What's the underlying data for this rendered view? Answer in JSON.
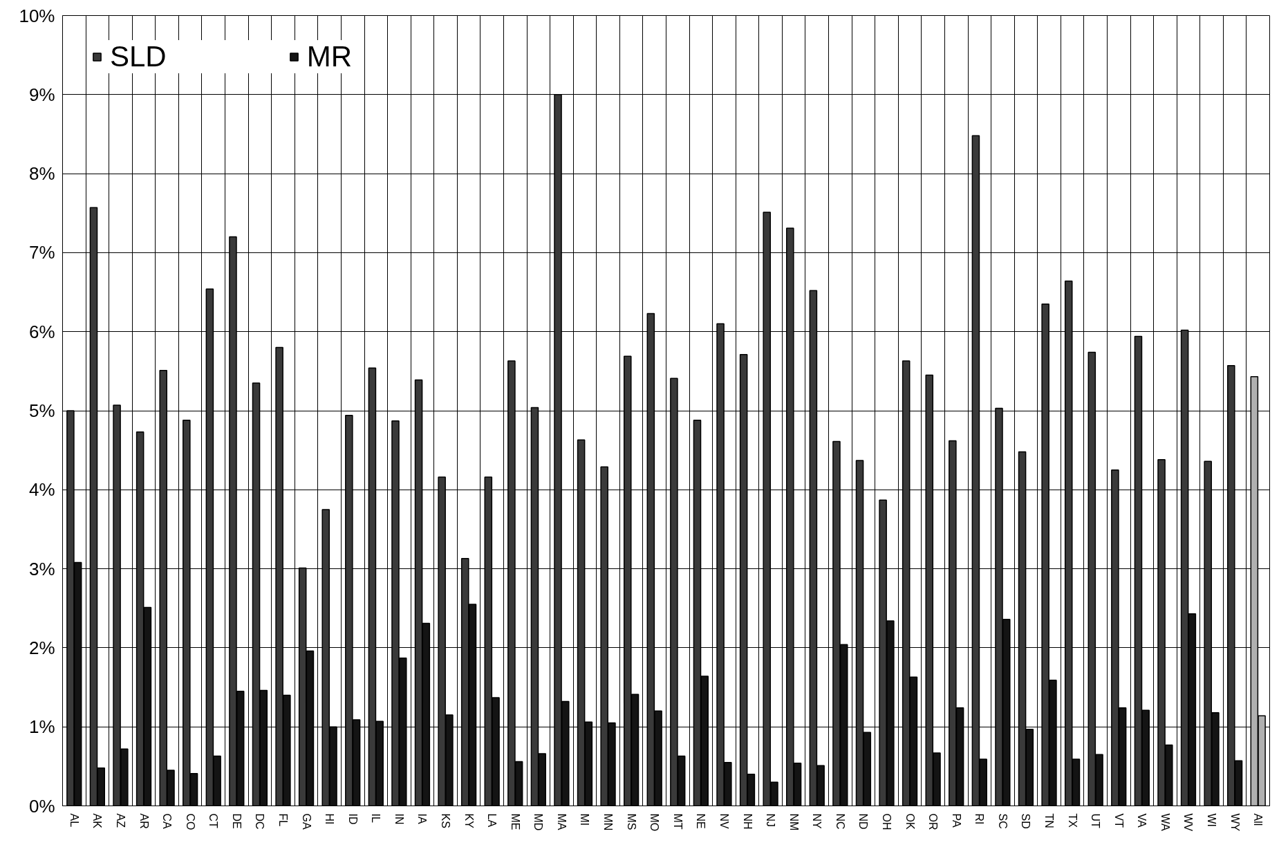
{
  "chart_data": {
    "type": "bar",
    "categories": [
      "AL",
      "AK",
      "AZ",
      "AR",
      "CA",
      "CO",
      "CT",
      "DE",
      "DC",
      "FL",
      "GA",
      "HI",
      "ID",
      "IL",
      "IN",
      "IA",
      "KS",
      "KY",
      "LA",
      "ME",
      "MD",
      "MA",
      "MI",
      "MN",
      "MS",
      "MO",
      "MT",
      "NE",
      "NV",
      "NH",
      "NJ",
      "NM",
      "NY",
      "NC",
      "ND",
      "OH",
      "OK",
      "OR",
      "PA",
      "RI",
      "SC",
      "SD",
      "TN",
      "TX",
      "UT",
      "VT",
      "VA",
      "WA",
      "WV",
      "WI",
      "WY",
      "All"
    ],
    "series": [
      {
        "name": "SLD",
        "color": "#3a3a3a",
        "colors": [
          "#3a3a3a",
          "#3a3a3a",
          "#3a3a3a",
          "#3a3a3a",
          "#3a3a3a",
          "#3a3a3a",
          "#3a3a3a",
          "#3a3a3a",
          "#3a3a3a",
          "#3a3a3a",
          "#3a3a3a",
          "#3a3a3a",
          "#3a3a3a",
          "#3a3a3a",
          "#3a3a3a",
          "#3a3a3a",
          "#3a3a3a",
          "#3a3a3a",
          "#3a3a3a",
          "#3a3a3a",
          "#3a3a3a",
          "#3a3a3a",
          "#3a3a3a",
          "#3a3a3a",
          "#3a3a3a",
          "#3a3a3a",
          "#3a3a3a",
          "#3a3a3a",
          "#3a3a3a",
          "#3a3a3a",
          "#3a3a3a",
          "#3a3a3a",
          "#3a3a3a",
          "#3a3a3a",
          "#3a3a3a",
          "#3a3a3a",
          "#3a3a3a",
          "#3a3a3a",
          "#3a3a3a",
          "#3a3a3a",
          "#3a3a3a",
          "#3a3a3a",
          "#3a3a3a",
          "#3a3a3a",
          "#3a3a3a",
          "#3a3a3a",
          "#3a3a3a",
          "#3a3a3a",
          "#3a3a3a",
          "#3a3a3a",
          "#3a3a3a",
          "#b0b0b0"
        ],
        "values": [
          5.0,
          7.57,
          5.07,
          4.73,
          5.51,
          4.88,
          6.54,
          7.2,
          5.35,
          5.8,
          3.01,
          3.75,
          4.94,
          5.54,
          4.87,
          5.39,
          4.16,
          3.13,
          4.16,
          5.63,
          5.04,
          9.0,
          4.63,
          4.29,
          5.69,
          6.23,
          5.41,
          4.88,
          6.1,
          5.71,
          7.51,
          7.31,
          6.52,
          4.61,
          4.37,
          3.87,
          5.63,
          5.45,
          4.62,
          8.48,
          5.03,
          4.48,
          6.35,
          6.64,
          5.74,
          4.25,
          5.94,
          4.38,
          6.02,
          4.36,
          5.57,
          5.43
        ]
      },
      {
        "name": "MR",
        "color": "#141414",
        "colors": [
          "#141414",
          "#141414",
          "#141414",
          "#141414",
          "#141414",
          "#141414",
          "#141414",
          "#141414",
          "#141414",
          "#141414",
          "#141414",
          "#141414",
          "#141414",
          "#141414",
          "#141414",
          "#141414",
          "#141414",
          "#141414",
          "#141414",
          "#141414",
          "#141414",
          "#141414",
          "#141414",
          "#141414",
          "#141414",
          "#141414",
          "#141414",
          "#141414",
          "#141414",
          "#141414",
          "#141414",
          "#141414",
          "#141414",
          "#141414",
          "#141414",
          "#141414",
          "#141414",
          "#141414",
          "#141414",
          "#141414",
          "#141414",
          "#141414",
          "#141414",
          "#141414",
          "#141414",
          "#141414",
          "#141414",
          "#141414",
          "#141414",
          "#141414",
          "#141414",
          "#b0b0b0"
        ],
        "values": [
          3.08,
          0.48,
          0.72,
          2.51,
          0.45,
          0.41,
          0.63,
          1.45,
          1.46,
          1.4,
          1.96,
          1.0,
          1.09,
          1.07,
          1.87,
          2.31,
          1.15,
          2.55,
          1.37,
          0.56,
          0.66,
          1.32,
          1.06,
          1.05,
          1.41,
          1.2,
          0.63,
          1.64,
          0.55,
          0.4,
          0.3,
          0.54,
          0.51,
          2.04,
          0.93,
          2.34,
          1.63,
          0.67,
          1.24,
          0.59,
          2.36,
          0.97,
          1.59,
          0.59,
          0.65,
          1.24,
          1.21,
          0.77,
          2.43,
          1.18,
          0.57,
          1.14
        ]
      }
    ],
    "ylim": [
      0,
      10
    ],
    "yticks": [
      {
        "value": 0,
        "label": "0%"
      },
      {
        "value": 1,
        "label": "1%"
      },
      {
        "value": 2,
        "label": "2%"
      },
      {
        "value": 3,
        "label": "3%"
      },
      {
        "value": 4,
        "label": "4%"
      },
      {
        "value": 5,
        "label": "5%"
      },
      {
        "value": 6,
        "label": "6%"
      },
      {
        "value": 7,
        "label": "7%"
      },
      {
        "value": 8,
        "label": "8%"
      },
      {
        "value": 9,
        "label": "9%"
      },
      {
        "value": 10,
        "label": "10%"
      }
    ],
    "grid": true,
    "legend": "top left"
  }
}
